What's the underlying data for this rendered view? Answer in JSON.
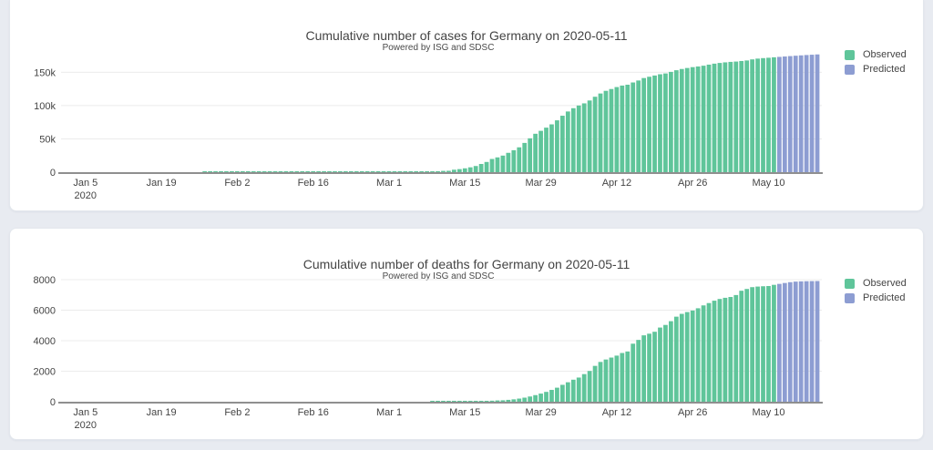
{
  "page": {
    "background": "#e8ebf1",
    "card_background": "#ffffff"
  },
  "chart_data": [
    {
      "type": "bar",
      "title": "Cumulative number of cases for Germany on 2020-05-11",
      "subtitle": "Powered by ISG and SDSC",
      "x_unit": "day",
      "x_start": "2020-01-01",
      "x_end": "2020-05-19",
      "n_days": 140,
      "x_tick_labels": [
        "Jan 5",
        "Jan 19",
        "Feb 2",
        "Feb 16",
        "Mar 1",
        "Mar 15",
        "Mar 29",
        "Apr 12",
        "Apr 26",
        "May 10"
      ],
      "x_tick_day_index": [
        4,
        18,
        32,
        46,
        60,
        74,
        88,
        102,
        116,
        130
      ],
      "x_first_tick_year": "2020",
      "ylim": [
        0,
        182000
      ],
      "y_ticks": [
        {
          "value": 0,
          "label": "0"
        },
        {
          "value": 50000,
          "label": "50k"
        },
        {
          "value": 100000,
          "label": "100k"
        },
        {
          "value": 150000,
          "label": "150k"
        }
      ],
      "grid": "horizontal",
      "legend_position": "top-right",
      "series": [
        {
          "name": "Observed",
          "color": "#5fc59a",
          "start_date": "2020-01-27",
          "start_day_index": 26,
          "values": [
            1,
            4,
            4,
            4,
            5,
            8,
            10,
            12,
            12,
            12,
            12,
            13,
            13,
            14,
            14,
            16,
            16,
            16,
            16,
            16,
            16,
            16,
            16,
            16,
            16,
            16,
            16,
            16,
            16,
            17,
            27,
            46,
            48,
            79,
            130,
            159,
            196,
            262,
            482,
            670,
            799,
            1040,
            1176,
            1457,
            1908,
            2078,
            3675,
            4585,
            5795,
            7272,
            9257,
            12327,
            15320,
            19848,
            22213,
            24873,
            29056,
            32986,
            37323,
            43938,
            50871,
            57695,
            62095,
            66885,
            71808,
            77872,
            84794,
            91159,
            96092,
            100123,
            103374,
            107663,
            113296,
            118181,
            122171,
            124908,
            127854,
            130072,
            131359,
            134753,
            137698,
            141397,
            143342,
            145184,
            147065,
            148291,
            150648,
            153129,
            154999,
            156513,
            157770,
            158758,
            159912,
            161539,
            163009,
            164077,
            164967,
            165664,
            166152,
            167007,
            167801,
            169430,
            170588,
            171324,
            171879,
            172576
          ]
        },
        {
          "name": "Predicted",
          "color": "#8d9dd2",
          "start_date": "2020-05-12",
          "start_day_index": 132,
          "values": [
            173171,
            173772,
            174355,
            174920,
            175457,
            175960,
            176430,
            176870
          ]
        }
      ]
    },
    {
      "type": "bar",
      "title": "Cumulative number of deaths for Germany on 2020-05-11",
      "subtitle": "Powered by ISG and SDSC",
      "x_unit": "day",
      "x_start": "2020-01-01",
      "x_end": "2020-05-19",
      "n_days": 140,
      "x_tick_labels": [
        "Jan 5",
        "Jan 19",
        "Feb 2",
        "Feb 16",
        "Mar 1",
        "Mar 15",
        "Mar 29",
        "Apr 12",
        "Apr 26",
        "May 10"
      ],
      "x_tick_day_index": [
        4,
        18,
        32,
        46,
        60,
        74,
        88,
        102,
        116,
        130
      ],
      "x_first_tick_year": "2020",
      "ylim": [
        0,
        8300
      ],
      "y_ticks": [
        {
          "value": 0,
          "label": "0"
        },
        {
          "value": 2000,
          "label": "2000"
        },
        {
          "value": 4000,
          "label": "4000"
        },
        {
          "value": 6000,
          "label": "6000"
        },
        {
          "value": 8000,
          "label": "8000"
        }
      ],
      "grid": "horizontal",
      "legend_position": "top-right",
      "series": [
        {
          "name": "Observed",
          "color": "#5fc59a",
          "start_date": "2020-03-09",
          "start_day_index": 68,
          "values": [
            2,
            2,
            3,
            5,
            7,
            9,
            11,
            17,
            24,
            28,
            44,
            67,
            84,
            94,
            123,
            157,
            206,
            267,
            342,
            433,
            533,
            645,
            775,
            920,
            1107,
            1275,
            1444,
            1584,
            1810,
            2016,
            2349,
            2607,
            2767,
            2894,
            3022,
            3194,
            3294,
            3804,
            4052,
            4352,
            4459,
            4586,
            4862,
            5033,
            5279,
            5575,
            5760,
            5877,
            5976,
            6126,
            6314,
            6467,
            6623,
            6736,
            6812,
            6866,
            6993,
            7275,
            7392,
            7510,
            7549,
            7569,
            7584,
            7661
          ]
        },
        {
          "name": "Predicted",
          "color": "#8d9dd2",
          "start_date": "2020-05-12",
          "start_day_index": 132,
          "values": [
            7724,
            7782,
            7836,
            7874,
            7890,
            7900,
            7907,
            7912
          ]
        }
      ]
    }
  ]
}
